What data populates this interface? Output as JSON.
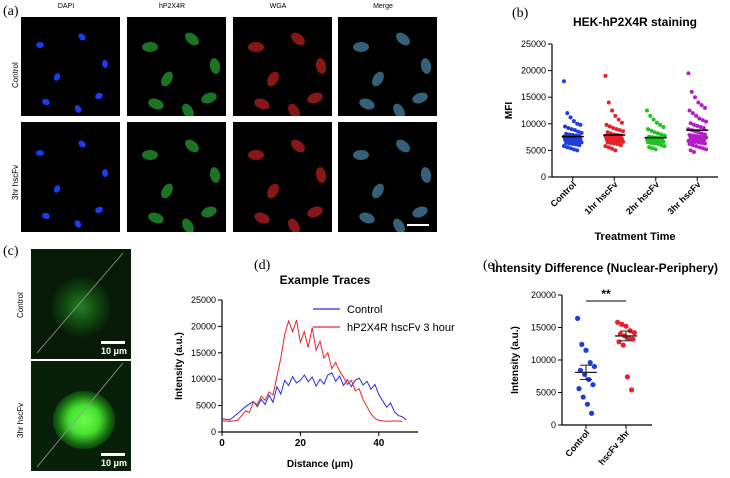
{
  "panel_letters": {
    "a": "(a)",
    "b": "(b)",
    "c": "(c)",
    "d": "(d)",
    "e": "(e)"
  },
  "panel_a": {
    "channels": [
      "DAPI",
      "hP2X4R",
      "WGA",
      "Merge"
    ],
    "rows": [
      "Control",
      "3hr hscFv"
    ],
    "channel_colors": [
      "#1f3cff",
      "#2fbf3a",
      "#e0262a",
      "#5aa0c8"
    ]
  },
  "panel_c": {
    "rows": [
      "Control",
      "3hr hscFv"
    ],
    "scale_bar": "10 μm"
  },
  "chart_data": [
    {
      "id": "b",
      "type": "scatter",
      "title": "HEK-hP2X4R staining",
      "xlabel": "Treatment Time",
      "ylabel": "MFI",
      "categories": [
        "Control",
        "1hr hscFv",
        "2hr hscFv",
        "3hr hscFv"
      ],
      "ylim": [
        0,
        25000
      ],
      "yticks": [
        0,
        5000,
        10000,
        15000,
        20000,
        25000
      ],
      "colors": [
        "#1f3cdc",
        "#e8202a",
        "#1fc21f",
        "#b41cc8"
      ],
      "means": [
        7600,
        7900,
        7400,
        8800
      ],
      "series": [
        {
          "values": [
            18000,
            12000,
            11200,
            10500,
            10000,
            9800,
            9500,
            9200,
            9000,
            8800,
            8500,
            8300,
            8100,
            8000,
            7900,
            7800,
            7700,
            7600,
            7500,
            7400,
            7300,
            7200,
            7100,
            7000,
            6900,
            6800,
            6700,
            6600,
            6500,
            6400,
            6300,
            6200,
            6100,
            6000,
            5800,
            5600,
            5400,
            5200,
            5000
          ]
        },
        {
          "values": [
            19000,
            14000,
            12500,
            11500,
            10800,
            10200,
            9800,
            9500,
            9200,
            9000,
            8800,
            8600,
            8400,
            8200,
            8000,
            7900,
            7800,
            7700,
            7600,
            7500,
            7400,
            7300,
            7200,
            7100,
            7000,
            6900,
            6800,
            6700,
            6600,
            6500,
            6400,
            6300,
            6200,
            6000,
            5800,
            5600,
            5300,
            5000
          ]
        },
        {
          "values": [
            12500,
            11500,
            10800,
            10200,
            9800,
            9400,
            9000,
            8700,
            8400,
            8200,
            8000,
            7800,
            7600,
            7500,
            7400,
            7300,
            7200,
            7100,
            7000,
            6900,
            6800,
            6700,
            6600,
            6500,
            6400,
            6300,
            6200,
            6000,
            5800,
            5600,
            5400,
            5200
          ]
        },
        {
          "values": [
            19500,
            16000,
            15000,
            14000,
            13500,
            13000,
            12500,
            12000,
            11500,
            11000,
            10700,
            10400,
            10100,
            9800,
            9600,
            9400,
            9200,
            9000,
            8800,
            8600,
            8400,
            8200,
            8000,
            7900,
            7800,
            7700,
            7600,
            7500,
            7400,
            7300,
            7200,
            7100,
            7000,
            6900,
            6800,
            6700,
            6600,
            6500,
            6400,
            6300,
            6200,
            6000,
            5800,
            5600,
            5400,
            5200,
            5000,
            4700
          ]
        }
      ]
    },
    {
      "id": "d",
      "type": "line",
      "title": "Example Traces",
      "xlabel": "Distance (μm)",
      "ylabel": "Intensity (a.u.)",
      "xlim": [
        0,
        50
      ],
      "ylim": [
        0,
        25000
      ],
      "xticks": [
        0,
        20,
        40
      ],
      "yticks": [
        0,
        5000,
        10000,
        15000,
        20000,
        25000
      ],
      "legend_position": "top-right",
      "series": [
        {
          "name": "Control",
          "color": "#2a2ae6",
          "points": [
            [
              0,
              2500
            ],
            [
              2,
              2300
            ],
            [
              4,
              3500
            ],
            [
              6,
              4800
            ],
            [
              8,
              5800
            ],
            [
              9,
              4800
            ],
            [
              10,
              6200
            ],
            [
              11,
              5200
            ],
            [
              12,
              7000
            ],
            [
              13,
              5600
            ],
            [
              14,
              8600
            ],
            [
              15,
              7200
            ],
            [
              16,
              9800
            ],
            [
              17,
              8800
            ],
            [
              18,
              10500
            ],
            [
              19,
              9300
            ],
            [
              20,
              9800
            ],
            [
              21,
              10800
            ],
            [
              22,
              9500
            ],
            [
              23,
              10400
            ],
            [
              24,
              8700
            ],
            [
              25,
              10000
            ],
            [
              26,
              9100
            ],
            [
              27,
              10800
            ],
            [
              28,
              11200
            ],
            [
              29,
              9600
            ],
            [
              30,
              10600
            ],
            [
              31,
              8800
            ],
            [
              32,
              9900
            ],
            [
              33,
              8600
            ],
            [
              34,
              9800
            ],
            [
              35,
              10200
            ],
            [
              36,
              8900
            ],
            [
              37,
              9600
            ],
            [
              38,
              8100
            ],
            [
              39,
              9000
            ],
            [
              40,
              7100
            ],
            [
              41,
              5900
            ],
            [
              42,
              4700
            ],
            [
              43,
              5500
            ],
            [
              44,
              3800
            ],
            [
              45,
              3100
            ],
            [
              46,
              2900
            ],
            [
              47,
              2300
            ]
          ]
        },
        {
          "name": "hP2X4R hscFv 3 hour",
          "color": "#e8262a",
          "points": [
            [
              0,
              2100
            ],
            [
              2,
              2000
            ],
            [
              4,
              2200
            ],
            [
              6,
              4000
            ],
            [
              7,
              3700
            ],
            [
              8,
              5700
            ],
            [
              9,
              5200
            ],
            [
              10,
              6800
            ],
            [
              11,
              6000
            ],
            [
              12,
              7600
            ],
            [
              13,
              7000
            ],
            [
              14,
              10500
            ],
            [
              15,
              14000
            ],
            [
              16,
              18500
            ],
            [
              17,
              21000
            ],
            [
              18,
              19000
            ],
            [
              19,
              21200
            ],
            [
              20,
              17000
            ],
            [
              21,
              19000
            ],
            [
              22,
              16000
            ],
            [
              23,
              19800
            ],
            [
              24,
              15500
            ],
            [
              25,
              17200
            ],
            [
              26,
              14000
            ],
            [
              27,
              15000
            ],
            [
              28,
              12000
            ],
            [
              29,
              13200
            ],
            [
              30,
              11500
            ],
            [
              31,
              10400
            ],
            [
              32,
              9000
            ],
            [
              33,
              9800
            ],
            [
              34,
              7800
            ],
            [
              35,
              8200
            ],
            [
              36,
              6100
            ],
            [
              37,
              4800
            ],
            [
              38,
              3400
            ],
            [
              39,
              2600
            ],
            [
              40,
              2200
            ],
            [
              42,
              2000
            ],
            [
              44,
              2100
            ],
            [
              46,
              2000
            ]
          ]
        }
      ]
    },
    {
      "id": "e",
      "type": "scatter",
      "title": "Intensity Difference (Nuclear-Periphery)",
      "ylabel": "Intensity (a.u.)",
      "categories": [
        "Control",
        "hscFv 3hr"
      ],
      "ylim": [
        0,
        20000
      ],
      "yticks": [
        0,
        5000,
        10000,
        15000,
        20000
      ],
      "colors": [
        "#1f3cdc",
        "#e8202a"
      ],
      "significance": "**",
      "means": [
        8100,
        13700
      ],
      "sem": [
        1100,
        750
      ],
      "series": [
        {
          "values": [
            16400,
            12400,
            11500,
            9600,
            9000,
            8400,
            7800,
            7000,
            6200,
            5600,
            4300,
            3200,
            1800
          ]
        },
        {
          "values": [
            15800,
            15500,
            15200,
            14500,
            14200,
            14000,
            13700,
            13400,
            13200,
            12800,
            12300,
            7400,
            5400
          ]
        }
      ]
    }
  ]
}
